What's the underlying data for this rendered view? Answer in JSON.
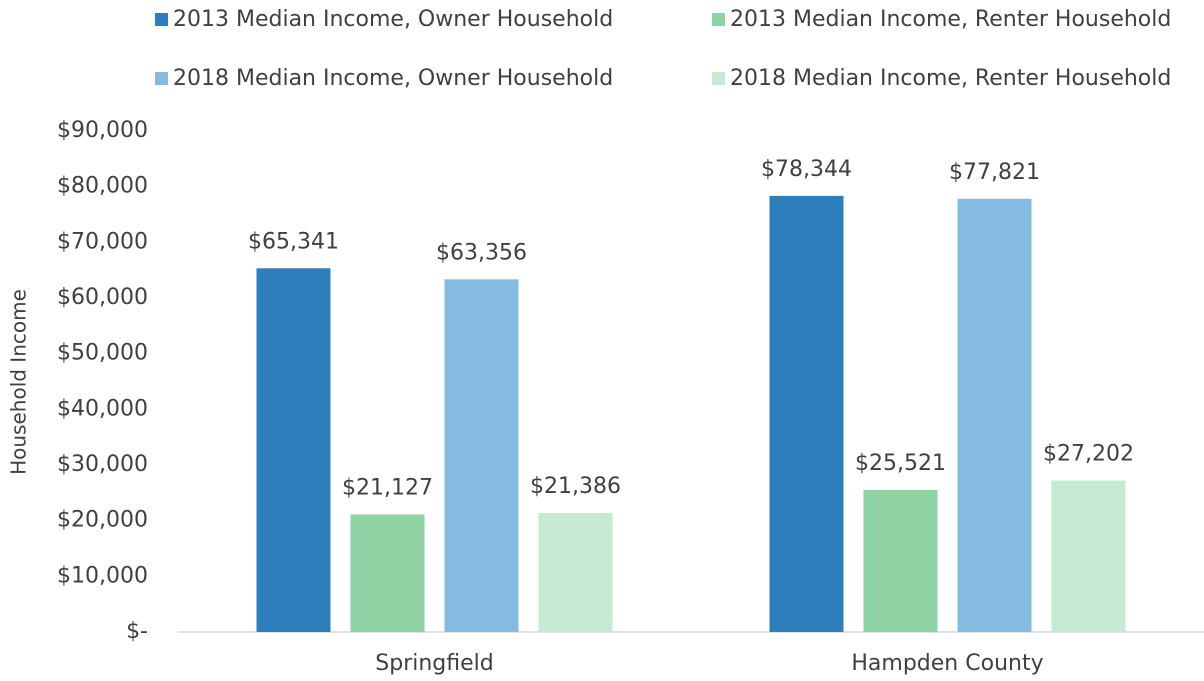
{
  "chart_data": {
    "type": "bar",
    "y_label": "Household Income",
    "categories": [
      "Springfield",
      "Hampden County"
    ],
    "series": [
      {
        "name": "2013 Median Income, Owner Household",
        "color": "#2e7ebb",
        "values": [
          65341,
          78344
        ],
        "value_labels": [
          "$65,341",
          "$78,344"
        ]
      },
      {
        "name": "2013 Median Income, Renter Household",
        "color": "#8fd3a5",
        "values": [
          21127,
          25521
        ],
        "value_labels": [
          "$21,127",
          "$25,521"
        ]
      },
      {
        "name": "2018 Median Income, Owner Household",
        "color": "#85bbe1",
        "values": [
          63356,
          77821
        ],
        "value_labels": [
          "$63,356",
          "$77,821"
        ]
      },
      {
        "name": "2018 Median Income, Renter Household",
        "color": "#c6e9d2",
        "values": [
          21386,
          27202
        ],
        "value_labels": [
          "$21,386",
          "$27,202"
        ]
      }
    ],
    "ylim": [
      0,
      90000
    ],
    "yticks": [
      {
        "value": 0,
        "label": "$-"
      },
      {
        "value": 10000,
        "label": "$10,000"
      },
      {
        "value": 20000,
        "label": "$20,000"
      },
      {
        "value": 30000,
        "label": "$30,000"
      },
      {
        "value": 40000,
        "label": "$40,000"
      },
      {
        "value": 50000,
        "label": "$50,000"
      },
      {
        "value": 60000,
        "label": "$60,000"
      },
      {
        "value": 70000,
        "label": "$70,000"
      },
      {
        "value": 80000,
        "label": "$80,000"
      },
      {
        "value": 90000,
        "label": "$90,000"
      }
    ],
    "grid": false,
    "legend": "top"
  }
}
